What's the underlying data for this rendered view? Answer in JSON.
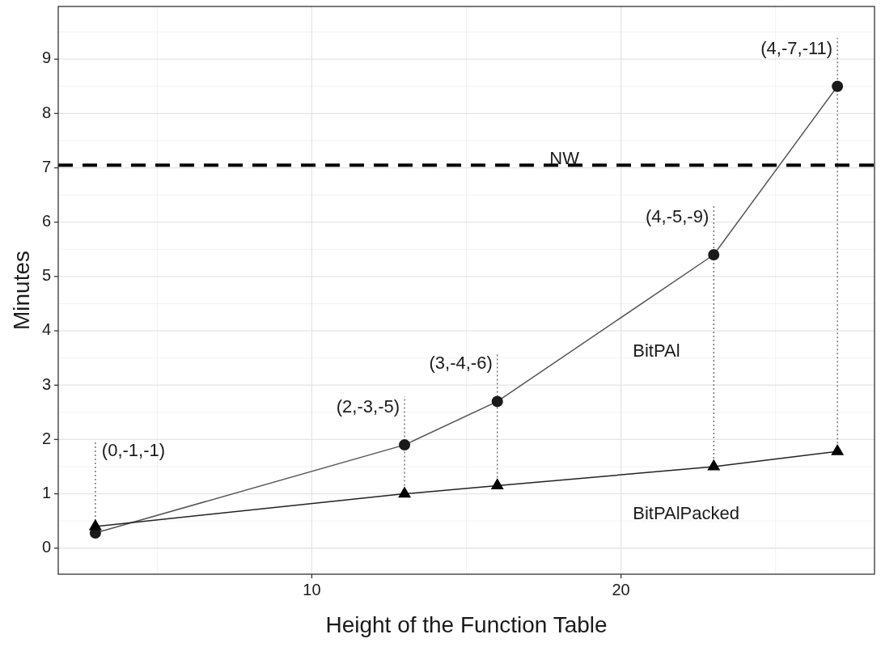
{
  "chart_data": {
    "type": "line",
    "xlabel": "Height of the Function Table",
    "ylabel": "Minutes",
    "x": [
      3,
      13,
      16,
      23,
      27
    ],
    "series": [
      {
        "name": "BitPAl",
        "color": "#1a1a1a",
        "marker": "circle",
        "values": [
          0.28,
          1.9,
          2.7,
          5.4,
          8.5
        ]
      },
      {
        "name": "BitPAlPacked",
        "color": "#000000",
        "marker": "triangle",
        "values": [
          0.4,
          1.0,
          1.15,
          1.5,
          1.78
        ]
      }
    ],
    "xlim": [
      1.8,
      28.2
    ],
    "xticks": [
      10,
      20
    ],
    "ylim": [
      -0.48,
      9.97
    ],
    "yticks": [
      0,
      1,
      2,
      3,
      4,
      5,
      6,
      7,
      8,
      9
    ],
    "grid": true,
    "legend": false,
    "line_style": "solid",
    "ref_lines": [
      {
        "axis": "y",
        "value": 7.05,
        "label": "NW",
        "line_style": "dashed",
        "color": "#000000"
      }
    ],
    "annotations": [
      {
        "text": "(0,-1,-1)",
        "x": 3,
        "y": 0.28
      },
      {
        "text": "(2,-3,-5)",
        "x": 13,
        "y": 1.9
      },
      {
        "text": "(3,-4,-6)",
        "x": 16,
        "y": 2.7
      },
      {
        "text": "(4,-5,-9)",
        "x": 23,
        "y": 5.4
      },
      {
        "text": "(4,-7,-11)",
        "x": 27,
        "y": 8.5
      }
    ]
  }
}
